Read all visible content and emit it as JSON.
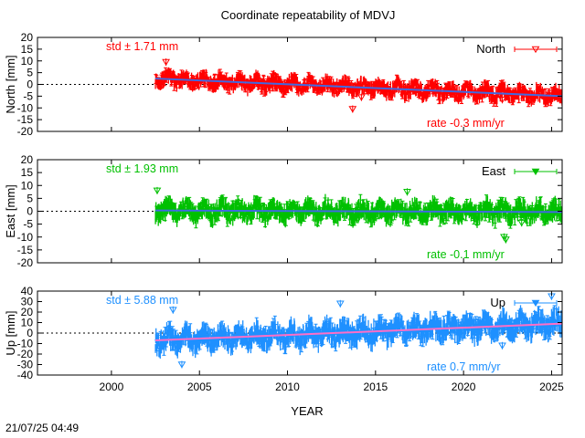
{
  "title": "Coordinate repeatability of MDVJ",
  "timestamp": "21/07/25 04:49",
  "xlabel": "YEAR",
  "x_axis": {
    "range": [
      1995.8,
      2025.6
    ],
    "ticks": [
      2000,
      2005,
      2010,
      2015,
      2020,
      2025
    ],
    "tick_labels": [
      "2000",
      "2005",
      "2010",
      "2015",
      "2020",
      "2025"
    ]
  },
  "chart_data": [
    {
      "type": "scatter",
      "panel": "north",
      "ylabel": "North [mm]",
      "legend": "North",
      "legend_position": "top-right",
      "std_label": "std ± 1.71 mm",
      "rate_label": "rate -0.3 mm/yr",
      "color": "#ff0000",
      "trend_color": "#4169e1",
      "ylim": [
        -20,
        20
      ],
      "yticks": [
        -20,
        -15,
        -10,
        -5,
        0,
        5,
        10,
        15,
        20
      ],
      "ytick_labels": [
        "-20",
        "-15",
        "-10",
        "-5",
        "0",
        "5",
        "10",
        "15",
        "20"
      ],
      "marker": "open-down-triangle",
      "start_year": 2002.5,
      "end_year": 2025.6,
      "trend": {
        "start": [
          2002.5,
          2.5
        ],
        "end": [
          2025.6,
          -5.0
        ]
      },
      "scatter_amplitude": 4.0,
      "outliers": [
        [
          2003.1,
          9.5
        ],
        [
          2013.7,
          -10.5
        ],
        [
          2014.2,
          -5.5
        ],
        [
          2022.2,
          -6.5
        ]
      ]
    },
    {
      "type": "scatter",
      "panel": "east",
      "ylabel": "East [mm]",
      "legend": "East",
      "legend_position": "top-right",
      "std_label": "std ± 1.93 mm",
      "rate_label": "rate -0.1 mm/yr",
      "color": "#00c000",
      "trend_color": "#4169e1",
      "ylim": [
        -20,
        20
      ],
      "yticks": [
        -20,
        -15,
        -10,
        -5,
        0,
        5,
        10,
        15,
        20
      ],
      "ytick_labels": [
        "-20",
        "-15",
        "-10",
        "-5",
        "0",
        "5",
        "10",
        "15",
        "20"
      ],
      "marker": "filled-down-triangle",
      "start_year": 2002.5,
      "end_year": 2025.6,
      "trend": {
        "start": [
          2002.5,
          0.3
        ],
        "end": [
          2025.6,
          -0.3
        ]
      },
      "scatter_amplitude": 4.5,
      "outliers": [
        [
          2002.6,
          8.0
        ],
        [
          2016.8,
          7.5
        ],
        [
          2022.3,
          -10.0
        ],
        [
          2022.4,
          -11.0
        ],
        [
          2023.3,
          -4.5
        ]
      ]
    },
    {
      "type": "scatter",
      "panel": "up",
      "ylabel": "Up [mm]",
      "legend": "Up",
      "legend_position": "top-right",
      "std_label": "std ± 5.88 mm",
      "rate_label": "rate  0.7 mm/yr",
      "color": "#1e90ff",
      "trend_color": "#ff6ec7",
      "ylim": [
        -40,
        40
      ],
      "yticks": [
        -40,
        -30,
        -20,
        -10,
        0,
        10,
        20,
        30,
        40
      ],
      "ytick_labels": [
        "-40",
        "-30",
        "-20",
        "-10",
        "0",
        "10",
        "20",
        "30",
        "40"
      ],
      "marker": "down-triangle",
      "start_year": 2002.5,
      "end_year": 2025.6,
      "trend": {
        "start": [
          2002.5,
          -7.0
        ],
        "end": [
          2025.6,
          9.0
        ]
      },
      "scatter_amplitude": 13.0,
      "outliers": [
        [
          2003.5,
          22.0
        ],
        [
          2004.0,
          -30.0
        ],
        [
          2013.0,
          28.0
        ],
        [
          2022.2,
          -12.0
        ],
        [
          2025.0,
          35.0
        ]
      ]
    }
  ]
}
